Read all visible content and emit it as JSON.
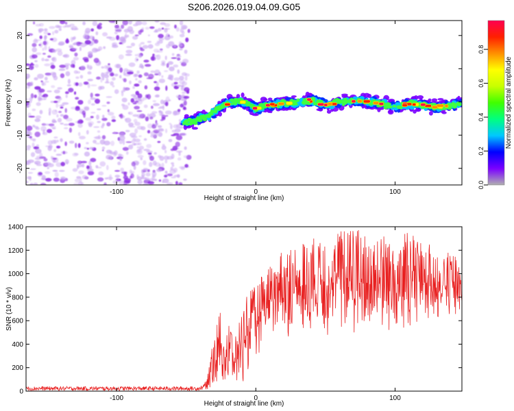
{
  "figure": {
    "title": "S206.2026.019.04.09.G05"
  },
  "chart_data": [
    {
      "type": "heatmap",
      "title": "",
      "xlabel": "Height of straight line (km)",
      "ylabel": "Frequency (Hz)",
      "xlim": [
        -165,
        148
      ],
      "ylim": [
        -25,
        24.5
      ],
      "xticks": [
        -100,
        0,
        100
      ],
      "yticks": [
        -20,
        -10,
        0,
        10,
        20
      ],
      "colorbar": {
        "label": "Normalized spectral amplitude",
        "range": [
          0,
          0.97
        ],
        "ticks": [
          0.0,
          0.2,
          0.4,
          0.6,
          0.8
        ],
        "colormap": [
          "#b0b0b0",
          "#7a00ff",
          "#0000ff",
          "#00c8ff",
          "#00ff80",
          "#40ff00",
          "#c8ff00",
          "#ffff00",
          "#ff9000",
          "#ff2000",
          "#ff0050"
        ]
      },
      "noise_region_x": [
        -165,
        -48
      ],
      "ridge": {
        "x": [
          -52,
          -45,
          -40,
          -35,
          -30,
          -25,
          -20,
          -15,
          -10,
          -5,
          0,
          10,
          20,
          30,
          40,
          50,
          60,
          70,
          80,
          90,
          100,
          110,
          120,
          130,
          140,
          148
        ],
        "frequency": [
          -6,
          -6,
          -5,
          -4.5,
          -3,
          -1.5,
          -0.5,
          0,
          0,
          -0.5,
          -2,
          -1,
          -0.5,
          0,
          0.5,
          -1,
          0,
          0.5,
          0,
          -0.5,
          -1.5,
          -0.5,
          -1,
          -1.5,
          -1,
          -0.5
        ]
      }
    },
    {
      "type": "line",
      "title": "",
      "xlabel": "Height of straight line (km)",
      "ylabel": "SNR (10 * v/v)",
      "xlim": [
        -165,
        148
      ],
      "ylim": [
        0,
        1400
      ],
      "xticks": [
        -100,
        0,
        100
      ],
      "yticks": [
        0,
        200,
        400,
        600,
        800,
        1000,
        1200,
        1400
      ],
      "series": [
        {
          "name": "SNR",
          "color": "#e82020",
          "envelope": {
            "x": [
              -165,
              -40,
              -35,
              -30,
              -25,
              -20,
              -15,
              -10,
              -5,
              0,
              5,
              10,
              20,
              30,
              40,
              50,
              60,
              70,
              80,
              90,
              100,
              110,
              120,
              130,
              140,
              148
            ],
            "upper": [
              40,
              40,
              100,
              500,
              700,
              600,
              450,
              700,
              850,
              900,
              1000,
              1100,
              1200,
              1250,
              1300,
              1350,
              1380,
              1400,
              1350,
              1350,
              1300,
              1380,
              1250,
              1250,
              1200,
              1100
            ],
            "lower": [
              5,
              5,
              10,
              30,
              20,
              10,
              30,
              60,
              150,
              250,
              350,
              400,
              450,
              450,
              500,
              450,
              500,
              450,
              500,
              450,
              500,
              500,
              550,
              500,
              550,
              650
            ]
          }
        }
      ]
    }
  ]
}
